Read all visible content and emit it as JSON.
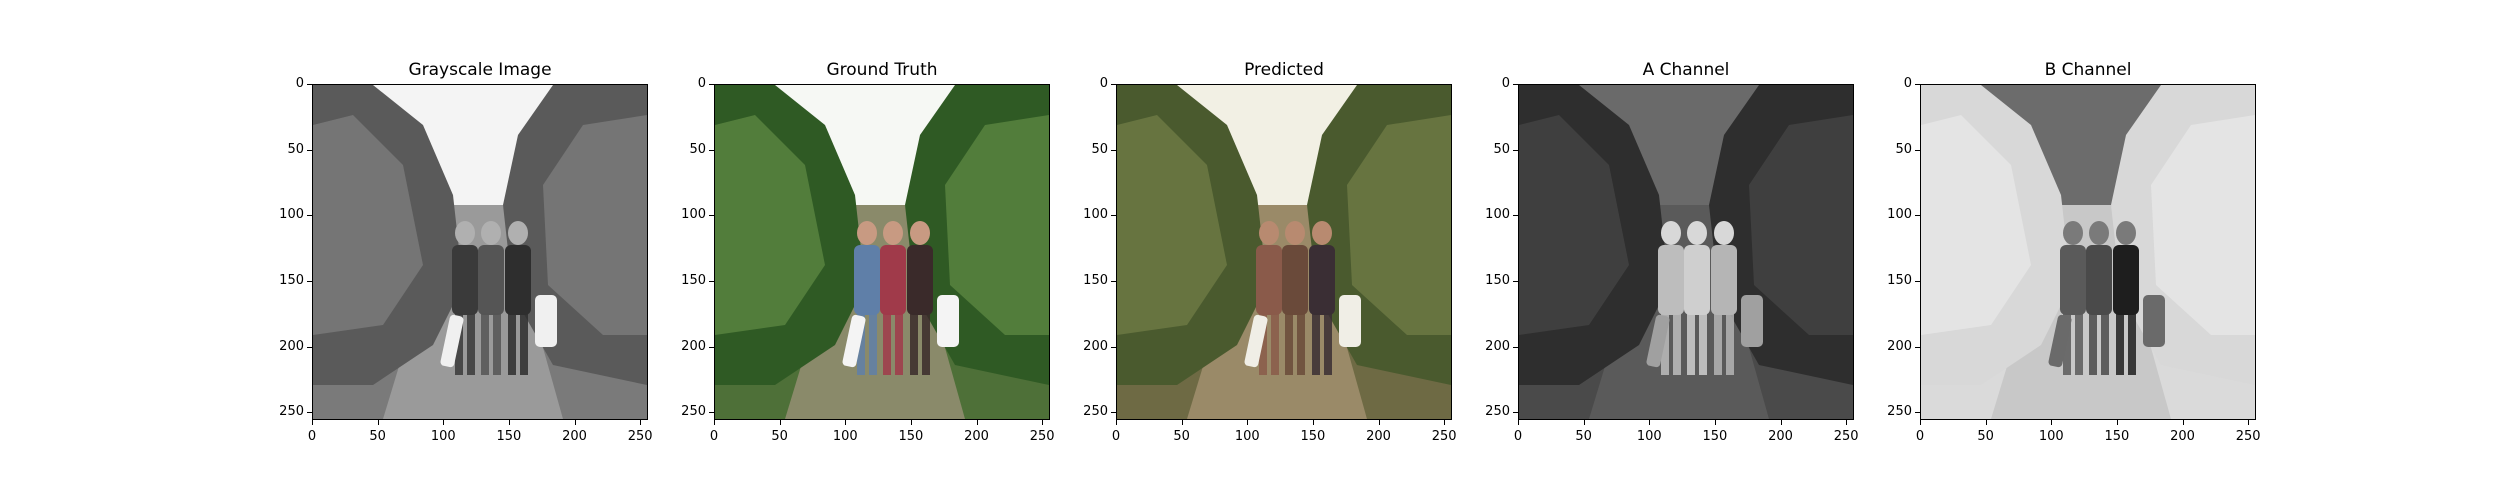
{
  "figure": {
    "panels": [
      {
        "title": "Grayscale Image",
        "kind": "grayscale"
      },
      {
        "title": "Ground Truth",
        "kind": "color"
      },
      {
        "title": "Predicted",
        "kind": "predicted"
      },
      {
        "title": "A Channel",
        "kind": "a-channel"
      },
      {
        "title": "B Channel",
        "kind": "b-channel"
      }
    ],
    "x_ticks": [
      0,
      50,
      100,
      150,
      200,
      250
    ],
    "y_ticks": [
      0,
      50,
      100,
      150,
      200,
      250
    ],
    "axis_range": [
      0,
      256
    ]
  }
}
